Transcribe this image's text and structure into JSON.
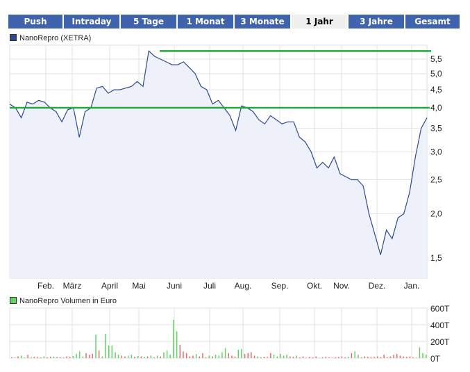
{
  "tabs": [
    {
      "label": "Push",
      "w": 78
    },
    {
      "label": "Intraday",
      "w": 80
    },
    {
      "label": "5 Tage",
      "w": 80
    },
    {
      "label": "1 Monat",
      "w": 80
    },
    {
      "label": "3 Monate",
      "w": 80
    },
    {
      "label": "1 Jahr",
      "w": 80,
      "active": true
    },
    {
      "label": "3 Jahre",
      "w": 80
    },
    {
      "label": "Gesamt",
      "w": 78
    }
  ],
  "colors": {
    "tab": "#3f63ad",
    "line": "#2b4a8c",
    "fill": "#eef1fa",
    "resistance": "#22a83c",
    "vol_up": "#5fd35f",
    "vol_down": "#e86a6a"
  },
  "chart_data": [
    {
      "type": "line",
      "legend": "NanoRepro (XETRA)",
      "y_scale": "log",
      "ylim": [
        1.4,
        5.9
      ],
      "y_ticks": [
        "5,5",
        "5,0",
        "4,5",
        "4,0",
        "3,5",
        "3,0",
        "2,5",
        "2,0",
        "1,5"
      ],
      "y_tick_values": [
        5.5,
        5.0,
        4.5,
        4.0,
        3.5,
        3.0,
        2.5,
        2.0,
        1.5
      ],
      "x_labels": [
        "Feb.",
        "März",
        "April",
        "Mai",
        "Juni",
        "Juli",
        "Aug.",
        "Sep.",
        "Okt.",
        "Nov.",
        "Dez.",
        "Jan."
      ],
      "horizontal_lines": [
        4.0,
        5.8
      ],
      "values": [
        4.1,
        4.0,
        3.75,
        4.15,
        4.1,
        4.2,
        4.15,
        4.0,
        3.9,
        3.65,
        3.95,
        4.0,
        3.3,
        3.9,
        4.0,
        4.55,
        4.6,
        4.4,
        4.5,
        4.5,
        4.55,
        4.6,
        4.75,
        4.6,
        5.8,
        5.6,
        5.5,
        5.4,
        5.3,
        5.3,
        5.4,
        5.2,
        5.0,
        4.6,
        4.5,
        4.1,
        4.2,
        4.0,
        3.8,
        3.45,
        4.05,
        4.0,
        3.9,
        3.7,
        3.6,
        3.8,
        3.7,
        3.6,
        3.65,
        3.65,
        3.3,
        3.2,
        3.0,
        2.7,
        2.8,
        2.7,
        2.9,
        2.6,
        2.55,
        2.5,
        2.5,
        2.4,
        2.0,
        1.75,
        1.53,
        1.8,
        1.7,
        1.95,
        2.0,
        2.3,
        2.9,
        3.5,
        3.75
      ]
    },
    {
      "type": "bar",
      "legend": "NanoRepro Volumen in Euro",
      "ylim": [
        0,
        600
      ],
      "y_ticks": [
        "600T",
        "400T",
        "200T",
        "0T"
      ],
      "y_tick_values": [
        600,
        400,
        200,
        0
      ],
      "values": [
        10,
        5,
        20,
        30,
        8,
        40,
        10,
        15,
        12,
        8,
        20,
        10,
        15,
        20,
        12,
        10,
        8,
        20,
        15,
        25,
        50,
        80,
        20,
        60,
        40,
        50,
        280,
        90,
        20,
        290,
        150,
        150,
        70,
        40,
        30,
        20,
        30,
        40,
        15,
        25,
        20,
        15,
        20,
        30,
        10,
        30,
        20,
        70,
        90,
        40,
        460,
        320,
        160,
        80,
        60,
        20,
        30,
        50,
        20,
        60,
        10,
        30,
        20,
        40,
        30,
        70,
        120,
        60,
        30,
        20,
        100,
        110,
        50,
        60,
        70,
        30,
        20,
        10,
        15,
        10,
        60,
        40,
        20,
        50,
        30,
        40,
        20,
        15,
        30,
        10,
        20,
        5,
        15,
        10,
        20,
        5,
        10,
        15,
        10,
        5,
        10,
        15,
        20,
        10,
        15,
        60,
        80,
        40,
        10,
        20,
        15,
        10,
        15,
        20,
        10,
        40,
        10,
        20,
        40,
        50,
        30,
        20,
        15,
        20,
        10,
        5,
        130,
        60,
        40
      ],
      "up": [
        0,
        0,
        0,
        1,
        1,
        0,
        1,
        0,
        0,
        0,
        1,
        0,
        0,
        1,
        0,
        0,
        1,
        0,
        0,
        1,
        1,
        1,
        1,
        0,
        0,
        0,
        1,
        0,
        1,
        1,
        1,
        1,
        1,
        1,
        0,
        0,
        1,
        1,
        0,
        1,
        0,
        1,
        0,
        1,
        0,
        1,
        0,
        1,
        1,
        1,
        1,
        1,
        0,
        0,
        0,
        0,
        0,
        1,
        0,
        0,
        0,
        1,
        0,
        1,
        1,
        1,
        1,
        0,
        0,
        0,
        1,
        1,
        0,
        0,
        0,
        0,
        1,
        0,
        0,
        0,
        0,
        1,
        1,
        1,
        1,
        1,
        0,
        0,
        1,
        0,
        0,
        0,
        0,
        0,
        0,
        1,
        0,
        0,
        0,
        0,
        0,
        0,
        0,
        0,
        1,
        0,
        1,
        1,
        0,
        0,
        0,
        0,
        0,
        0,
        0,
        0,
        0,
        0,
        0,
        0,
        0,
        0,
        0,
        0,
        0,
        1,
        1,
        1,
        1
      ]
    }
  ]
}
